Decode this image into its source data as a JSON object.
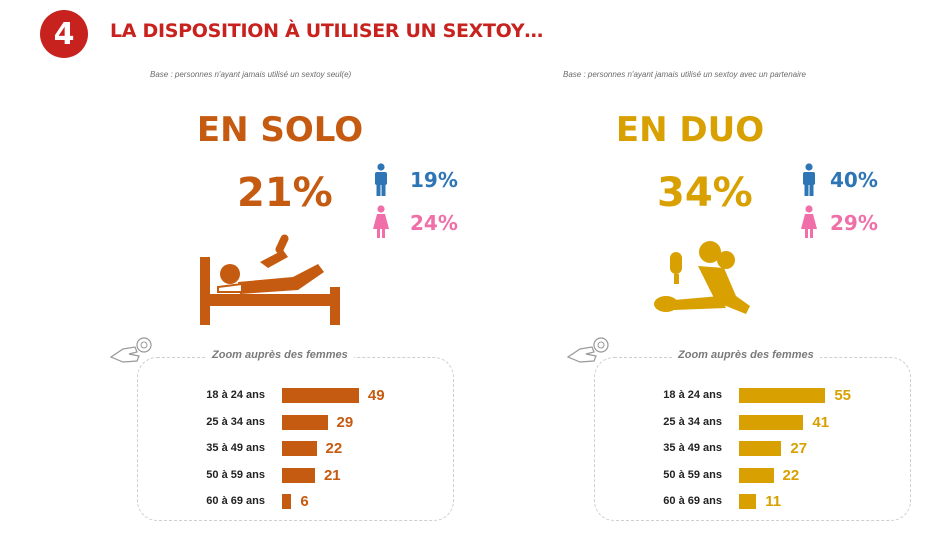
{
  "header": {
    "number": "4",
    "title": "LA DISPOSITION À UTILISER UN SEXTOY…"
  },
  "colors": {
    "red": "#c8221e",
    "solo": "#c55a11",
    "duo": "#d8a000",
    "men": "#2e75b6",
    "women": "#f06fa8"
  },
  "solo": {
    "base": "Base : personnes n'ayant jamais utilisé un sextoy seul(e)",
    "title": "EN SOLO",
    "total": "21%",
    "men": "19%",
    "women": "24%",
    "zoom_label": "Zoom auprès des femmes",
    "icons": {
      "men": "man-icon",
      "women": "woman-icon",
      "illustration": "person-in-bed-icon",
      "hand": "hand-icon"
    }
  },
  "duo": {
    "base": "Base : personnes n'ayant jamais utilisé un sextoy avec un partenaire",
    "title": "EN DUO",
    "total": "34%",
    "men": "40%",
    "women": "29%",
    "zoom_label": "Zoom auprès des femmes",
    "icons": {
      "men": "man-icon",
      "women": "woman-icon",
      "illustration": "couple-icon",
      "hand": "hand-icon"
    }
  },
  "chart_data": [
    {
      "type": "bar",
      "title": "Zoom auprès des femmes",
      "categories": [
        "18 à 24 ans",
        "25 à 34 ans",
        "35 à 49 ans",
        "50 à 59 ans",
        "60 à 69 ans"
      ],
      "values": [
        49,
        29,
        22,
        21,
        6
      ],
      "orientation": "horizontal",
      "color": "#c55a11"
    },
    {
      "type": "bar",
      "title": "Zoom auprès des femmes",
      "categories": [
        "18 à 24 ans",
        "25 à 34 ans",
        "35 à 49 ans",
        "50 à 59 ans",
        "60 à 69 ans"
      ],
      "values": [
        55,
        41,
        27,
        22,
        11
      ],
      "orientation": "horizontal",
      "color": "#d8a000"
    }
  ]
}
